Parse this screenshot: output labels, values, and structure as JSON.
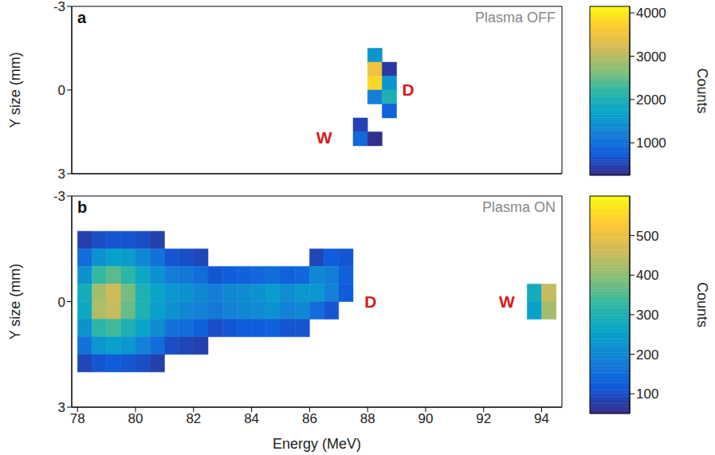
{
  "chart_data": [
    {
      "type": "heatmap",
      "panel": "a",
      "subtitle": "Plasma OFF",
      "y_label": "Y size (mm)",
      "tick_labels": "y",
      "xlim": [
        77.8,
        94.7
      ],
      "xticks": [
        78,
        80,
        82,
        84,
        86,
        88,
        90,
        92,
        94
      ],
      "ylim": [
        3,
        -3
      ],
      "yticks": [
        -3,
        0,
        3
      ],
      "x_bins": [
        78,
        78.5,
        79,
        79.5,
        80,
        80.5,
        81,
        81.5,
        82,
        82.5,
        83,
        83.5,
        84,
        84.5,
        85,
        85.5,
        86,
        86.5,
        87,
        87.5,
        88,
        88.5,
        89,
        89.5,
        90,
        90.5,
        91,
        91.5,
        92,
        92.5,
        93,
        93.5,
        94,
        94.5
      ],
      "y_bins": [
        -3,
        -2.5,
        -2,
        -1.5,
        -1,
        -0.5,
        0,
        0.5,
        1,
        1.5,
        2,
        2.5,
        3
      ],
      "z": [
        [
          null,
          null,
          null,
          null,
          null,
          null,
          null,
          null,
          null,
          null,
          null,
          null,
          null,
          null,
          null,
          null,
          null,
          null,
          null,
          null,
          null,
          null,
          null,
          null,
          null,
          null,
          null,
          null,
          null,
          null,
          null,
          null,
          null
        ],
        [
          null,
          null,
          null,
          null,
          null,
          null,
          null,
          null,
          null,
          null,
          null,
          null,
          null,
          null,
          null,
          null,
          null,
          null,
          null,
          null,
          null,
          null,
          null,
          null,
          null,
          null,
          null,
          null,
          null,
          null,
          null,
          null,
          null
        ],
        [
          null,
          null,
          null,
          null,
          null,
          null,
          null,
          null,
          null,
          null,
          null,
          null,
          null,
          null,
          null,
          null,
          null,
          null,
          null,
          null,
          null,
          null,
          null,
          null,
          null,
          null,
          null,
          null,
          null,
          null,
          null,
          null,
          null
        ],
        [
          null,
          null,
          null,
          null,
          null,
          null,
          null,
          null,
          null,
          null,
          null,
          null,
          null,
          null,
          null,
          null,
          null,
          null,
          null,
          null,
          1500,
          null,
          null,
          null,
          null,
          null,
          null,
          null,
          null,
          null,
          null,
          null,
          null
        ],
        [
          null,
          null,
          null,
          null,
          null,
          null,
          null,
          null,
          null,
          null,
          null,
          null,
          null,
          null,
          null,
          null,
          null,
          null,
          null,
          null,
          3500,
          400,
          null,
          null,
          null,
          null,
          null,
          null,
          null,
          null,
          null,
          null,
          null
        ],
        [
          null,
          null,
          null,
          null,
          null,
          null,
          null,
          null,
          null,
          null,
          null,
          null,
          null,
          null,
          null,
          null,
          null,
          null,
          null,
          null,
          3800,
          1500,
          null,
          null,
          null,
          null,
          null,
          null,
          null,
          null,
          null,
          null,
          null
        ],
        [
          null,
          null,
          null,
          null,
          null,
          null,
          null,
          null,
          null,
          null,
          null,
          null,
          null,
          null,
          null,
          null,
          null,
          null,
          null,
          null,
          1200,
          2000,
          null,
          null,
          null,
          null,
          null,
          null,
          null,
          null,
          null,
          null,
          null
        ],
        [
          null,
          null,
          null,
          null,
          null,
          null,
          null,
          null,
          null,
          null,
          null,
          null,
          null,
          null,
          null,
          null,
          null,
          null,
          null,
          null,
          null,
          800,
          null,
          null,
          null,
          null,
          null,
          null,
          null,
          null,
          null,
          null,
          null
        ],
        [
          null,
          null,
          null,
          null,
          null,
          null,
          null,
          null,
          null,
          null,
          null,
          null,
          null,
          null,
          null,
          null,
          null,
          null,
          null,
          500,
          null,
          null,
          null,
          null,
          null,
          null,
          null,
          null,
          null,
          null,
          null,
          null,
          null
        ],
        [
          null,
          null,
          null,
          null,
          null,
          null,
          null,
          null,
          null,
          null,
          null,
          null,
          null,
          null,
          null,
          null,
          null,
          null,
          null,
          900,
          300,
          null,
          null,
          null,
          null,
          null,
          null,
          null,
          null,
          null,
          null,
          null,
          null
        ],
        [
          null,
          null,
          null,
          null,
          null,
          null,
          null,
          null,
          null,
          null,
          null,
          null,
          null,
          null,
          null,
          null,
          null,
          null,
          null,
          null,
          null,
          null,
          null,
          null,
          null,
          null,
          null,
          null,
          null,
          null,
          null,
          null,
          null
        ],
        [
          null,
          null,
          null,
          null,
          null,
          null,
          null,
          null,
          null,
          null,
          null,
          null,
          null,
          null,
          null,
          null,
          null,
          null,
          null,
          null,
          null,
          null,
          null,
          null,
          null,
          null,
          null,
          null,
          null,
          null,
          null,
          null,
          null
        ]
      ],
      "colorbar": {
        "lim": [
          250,
          4150
        ],
        "ticks": [
          1000,
          2000,
          3000,
          4000
        ],
        "label": "Counts"
      },
      "annotations": [
        {
          "text": "D",
          "x": 89.4,
          "y": 0
        },
        {
          "text": "W",
          "x": 86.5,
          "y": 1.7
        }
      ]
    },
    {
      "type": "heatmap",
      "panel": "b",
      "subtitle": "Plasma ON",
      "x_label": "Energy (MeV)",
      "y_label": "Y size (mm)",
      "xlim": [
        77.8,
        94.7
      ],
      "xticks": [
        78,
        80,
        82,
        84,
        86,
        88,
        90,
        92,
        94
      ],
      "ylim": [
        3,
        -3
      ],
      "yticks": [
        -3,
        0,
        3
      ],
      "x_bins": [
        78,
        78.5,
        79,
        79.5,
        80,
        80.5,
        81,
        81.5,
        82,
        82.5,
        83,
        83.5,
        84,
        84.5,
        85,
        85.5,
        86,
        86.5,
        87,
        87.5,
        88,
        88.5,
        89,
        89.5,
        90,
        90.5,
        91,
        91.5,
        92,
        92.5,
        93,
        93.5,
        94,
        94.5
      ],
      "y_bins": [
        -3,
        -2.5,
        -2,
        -1.5,
        -1,
        -0.5,
        0,
        0.5,
        1,
        1.5,
        2,
        2.5,
        3
      ],
      "z": [
        [
          null,
          null,
          null,
          null,
          null,
          null,
          null,
          null,
          null,
          null,
          null,
          null,
          null,
          null,
          null,
          null,
          null,
          null,
          null,
          null,
          null,
          null,
          null,
          null,
          null,
          null,
          null,
          null,
          null,
          null,
          null,
          null,
          null
        ],
        [
          null,
          null,
          null,
          null,
          null,
          null,
          null,
          null,
          null,
          null,
          null,
          null,
          null,
          null,
          null,
          null,
          null,
          null,
          null,
          null,
          null,
          null,
          null,
          null,
          null,
          null,
          null,
          null,
          null,
          null,
          null,
          null,
          null
        ],
        [
          80,
          100,
          110,
          110,
          100,
          80,
          null,
          null,
          null,
          null,
          null,
          null,
          null,
          null,
          null,
          null,
          null,
          null,
          null,
          null,
          null,
          null,
          null,
          null,
          null,
          null,
          null,
          null,
          null,
          null,
          null,
          null,
          null
        ],
        [
          150,
          220,
          250,
          240,
          200,
          160,
          110,
          100,
          90,
          null,
          null,
          null,
          null,
          null,
          null,
          null,
          90,
          120,
          110,
          null,
          null,
          null,
          null,
          null,
          null,
          null,
          null,
          null,
          null,
          null,
          null,
          null,
          null
        ],
        [
          220,
          330,
          360,
          320,
          270,
          220,
          180,
          170,
          150,
          110,
          120,
          130,
          140,
          150,
          130,
          140,
          200,
          180,
          130,
          null,
          null,
          null,
          null,
          null,
          null,
          null,
          null,
          null,
          null,
          null,
          null,
          null,
          null
        ],
        [
          280,
          420,
          460,
          380,
          300,
          260,
          230,
          220,
          200,
          180,
          200,
          210,
          220,
          240,
          210,
          230,
          230,
          190,
          120,
          null,
          null,
          null,
          null,
          null,
          null,
          null,
          null,
          null,
          null,
          null,
          null,
          280,
          450
        ],
        [
          270,
          430,
          450,
          370,
          300,
          250,
          220,
          200,
          190,
          170,
          190,
          200,
          210,
          220,
          190,
          200,
          150,
          110,
          null,
          null,
          null,
          null,
          null,
          null,
          null,
          null,
          null,
          null,
          null,
          null,
          null,
          250,
          420
        ],
        [
          220,
          320,
          340,
          300,
          260,
          210,
          160,
          150,
          130,
          100,
          110,
          120,
          120,
          130,
          110,
          110,
          null,
          null,
          null,
          null,
          null,
          null,
          null,
          null,
          null,
          null,
          null,
          null,
          null,
          null,
          null,
          null,
          null
        ],
        [
          160,
          230,
          250,
          230,
          190,
          150,
          100,
          90,
          80,
          null,
          null,
          null,
          null,
          null,
          null,
          null,
          null,
          null,
          null,
          null,
          null,
          null,
          null,
          null,
          null,
          null,
          null,
          null,
          null,
          null,
          null,
          null,
          null
        ],
        [
          90,
          110,
          120,
          110,
          100,
          80,
          null,
          null,
          null,
          null,
          null,
          null,
          null,
          null,
          null,
          null,
          null,
          null,
          null,
          null,
          null,
          null,
          null,
          null,
          null,
          null,
          null,
          null,
          null,
          null,
          null,
          null,
          null
        ],
        [
          null,
          null,
          null,
          null,
          null,
          null,
          null,
          null,
          null,
          null,
          null,
          null,
          null,
          null,
          null,
          null,
          null,
          null,
          null,
          null,
          null,
          null,
          null,
          null,
          null,
          null,
          null,
          null,
          null,
          null,
          null,
          null,
          null
        ],
        [
          null,
          null,
          null,
          null,
          null,
          null,
          null,
          null,
          null,
          null,
          null,
          null,
          null,
          null,
          null,
          null,
          null,
          null,
          null,
          null,
          null,
          null,
          null,
          null,
          null,
          null,
          null,
          null,
          null,
          null,
          null,
          null,
          null
        ]
      ],
      "colorbar": {
        "lim": [
          50,
          600
        ],
        "ticks": [
          100,
          200,
          300,
          400,
          500
        ],
        "label": "Counts"
      },
      "annotations": [
        {
          "text": "D",
          "x": 88.1,
          "y": 0
        },
        {
          "text": "W",
          "x": 92.8,
          "y": 0
        }
      ]
    }
  ]
}
